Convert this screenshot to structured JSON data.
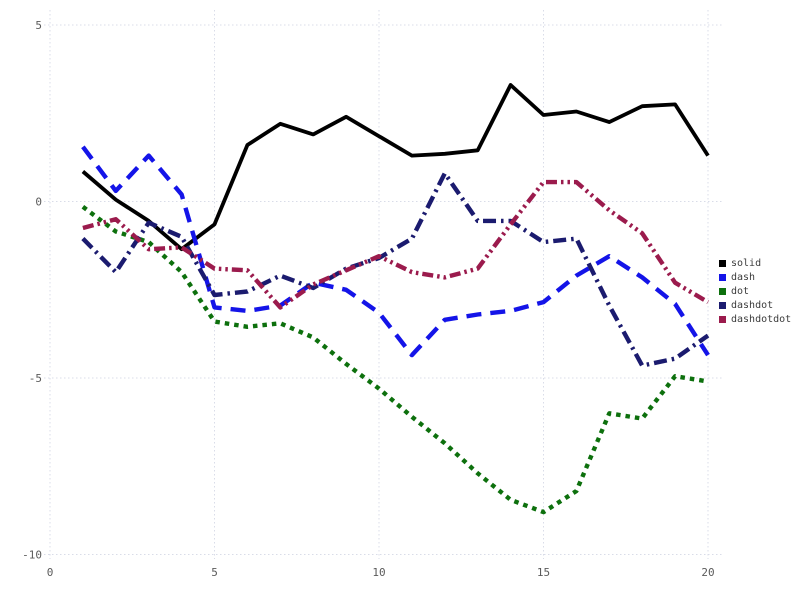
{
  "chart_data": {
    "type": "line",
    "title": "",
    "xlabel": "",
    "ylabel": "",
    "grid": true,
    "legend_position": "right",
    "xlim": [
      0,
      20.6
    ],
    "ylim": [
      -10.3,
      5.5
    ],
    "x_ticks": [
      "0",
      "5",
      "10",
      "15",
      "20"
    ],
    "x_tick_values": [
      0,
      5,
      10,
      15,
      20
    ],
    "y_ticks": [
      "5",
      "0",
      "-5",
      "-10"
    ],
    "y_tick_values": [
      5,
      0,
      -5,
      -10
    ],
    "x": [
      1,
      2,
      3,
      4,
      5,
      6,
      7,
      8,
      9,
      10,
      11,
      12,
      13,
      14,
      15,
      16,
      17,
      18,
      19,
      20
    ],
    "series": [
      {
        "name": "solid",
        "style": "solid",
        "color": "#000000",
        "values": [
          0.85,
          0.05,
          -0.55,
          -1.35,
          -0.65,
          1.6,
          2.2,
          1.9,
          2.4,
          1.85,
          1.3,
          1.35,
          1.45,
          3.3,
          2.45,
          2.55,
          2.25,
          2.7,
          2.75,
          1.3
        ]
      },
      {
        "name": "dash",
        "style": "dash",
        "color": "#1414e8",
        "values": [
          1.55,
          0.3,
          1.3,
          0.2,
          -3.0,
          -3.1,
          -2.95,
          -2.3,
          -2.5,
          -3.15,
          -4.35,
          -3.35,
          -3.2,
          -3.1,
          -2.85,
          -2.1,
          -1.55,
          -2.15,
          -2.9,
          -4.35
        ]
      },
      {
        "name": "dot",
        "style": "dot",
        "color": "#0d700d",
        "values": [
          -0.15,
          -0.85,
          -1.15,
          -2.0,
          -3.4,
          -3.55,
          -3.45,
          -3.85,
          -4.6,
          -5.3,
          -6.1,
          -6.85,
          -7.7,
          -8.45,
          -8.8,
          -8.2,
          -6.0,
          -6.15,
          -4.95,
          -5.1
        ]
      },
      {
        "name": "dashdot",
        "style": "dashdot",
        "color": "#1b1b6f",
        "values": [
          -1.05,
          -2.0,
          -0.6,
          -1.0,
          -2.65,
          -2.55,
          -2.1,
          -2.45,
          -1.9,
          -1.6,
          -1.05,
          0.8,
          -0.55,
          -0.55,
          -1.15,
          -1.05,
          -2.95,
          -4.65,
          -4.45,
          -3.8
        ]
      },
      {
        "name": "dashdotdot",
        "style": "dashdotdot",
        "color": "#9b1b4d",
        "values": [
          -0.75,
          -0.5,
          -1.35,
          -1.3,
          -1.9,
          -1.95,
          -3.0,
          -2.35,
          -1.95,
          -1.55,
          -2.0,
          -2.15,
          -1.9,
          -0.65,
          0.55,
          0.55,
          -0.25,
          -0.9,
          -2.3,
          -2.85
        ]
      }
    ],
    "colors": {
      "grid": "#d9dce8",
      "tick_text": "#5a5a5a",
      "legend_text": "#3c3c3c",
      "background": "#ffffff"
    }
  },
  "legend": {
    "items": [
      {
        "label": "solid"
      },
      {
        "label": "dash"
      },
      {
        "label": "dot"
      },
      {
        "label": "dashdot"
      },
      {
        "label": "dashdotdot"
      }
    ]
  }
}
